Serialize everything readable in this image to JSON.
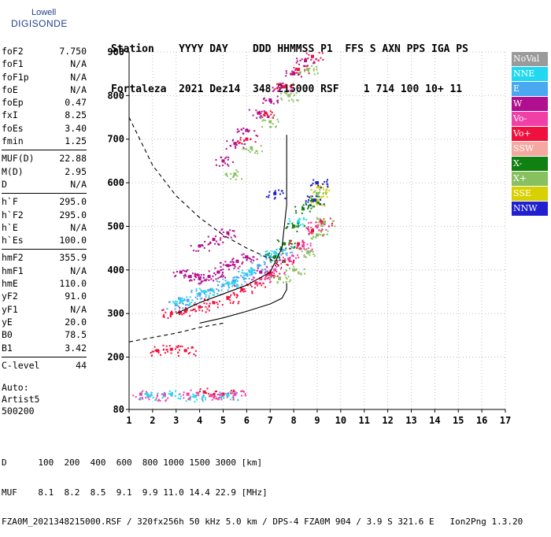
{
  "logo": {
    "line1": "Lowell",
    "line2": "DIGISONDE"
  },
  "header": {
    "labels": "Station    YYYY DAY    DDD HHMMSS P1  FFS S AXN PPS IGA PS",
    "values": "Fortaleza  2021 Dez14  348 215000 RSF    1 714 100 10+ 11"
  },
  "params": [
    {
      "k": "foF2",
      "v": "7.750"
    },
    {
      "k": "foF1",
      "v": "N/A"
    },
    {
      "k": "foF1p",
      "v": "N/A"
    },
    {
      "k": "foE",
      "v": "N/A"
    },
    {
      "k": "foEp",
      "v": "0.47"
    },
    {
      "k": "fxI",
      "v": "8.25"
    },
    {
      "k": "foEs",
      "v": "3.40"
    },
    {
      "k": "fmin",
      "v": "1.25"
    },
    {
      "k": "MUF(D)",
      "v": "22.88"
    },
    {
      "k": "M(D)",
      "v": "2.95"
    },
    {
      "k": "D",
      "v": "N/A"
    },
    {
      "k": "h`F",
      "v": "295.0"
    },
    {
      "k": "h`F2",
      "v": "295.0"
    },
    {
      "k": "h`E",
      "v": "N/A"
    },
    {
      "k": "h`Es",
      "v": "100.0"
    },
    {
      "k": "hmF2",
      "v": "355.9"
    },
    {
      "k": "hmF1",
      "v": "N/A"
    },
    {
      "k": "hmE",
      "v": "110.0"
    },
    {
      "k": "yF2",
      "v": "91.0"
    },
    {
      "k": "yF1",
      "v": "N/A"
    },
    {
      "k": "yE",
      "v": "20.0"
    },
    {
      "k": "B0",
      "v": "78.5"
    },
    {
      "k": "B1",
      "v": "3.42"
    },
    {
      "k": "C-level",
      "v": "44"
    }
  ],
  "auto": {
    "line1": "Auto:",
    "line2": "Artist5",
    "line3": "500200"
  },
  "legend": [
    {
      "label": "NoVal",
      "color": "#9a9a9a"
    },
    {
      "label": "NNE",
      "color": "#22d8f0"
    },
    {
      "label": "E",
      "color": "#4aa8f0"
    },
    {
      "label": "W",
      "color": "#b0108f"
    },
    {
      "label": "Vo-",
      "color": "#f040a8"
    },
    {
      "label": "Vo+",
      "color": "#f01040"
    },
    {
      "label": "SSW",
      "color": "#f4a8a0"
    },
    {
      "label": "X-",
      "color": "#108010"
    },
    {
      "label": "X+",
      "color": "#88c060"
    },
    {
      "label": "SSE",
      "color": "#d8d000"
    },
    {
      "label": "NNW",
      "color": "#2020d0"
    }
  ],
  "footer": {
    "d_row": "D      100  200  400  600  800 1000 1500 3000 [km]",
    "muf_row": "MUF    8.1  8.2  8.5  9.1  9.9 11.0 14.4 22.9 [MHz]",
    "file_row": "FZA0M_2021348215000.RSF / 320fx256h 50 kHz 5.0 km / DPS-4 FZA0M 904 / 3.9 S 321.6 E   Ion2Png 1.3.20"
  },
  "chart_data": {
    "type": "scatter",
    "title": "",
    "xlabel": "",
    "ylabel": "",
    "xlim": [
      1,
      17
    ],
    "ylim": [
      80,
      900
    ],
    "xticks": [
      1,
      2,
      3,
      4,
      5,
      6,
      7,
      8,
      9,
      10,
      11,
      12,
      13,
      14,
      15,
      16,
      17
    ],
    "yticks": [
      80,
      200,
      300,
      400,
      500,
      600,
      700,
      800,
      900
    ],
    "grid": true,
    "legend_placement": "right",
    "series": [
      {
        "mode": "W",
        "points": [
          [
            3.2,
            395
          ],
          [
            3.6,
            385
          ],
          [
            4.0,
            380
          ],
          [
            4.4,
            385
          ],
          [
            4.8,
            395
          ],
          [
            5.2,
            410
          ],
          [
            5.6,
            420
          ],
          [
            4.0,
            455
          ],
          [
            4.6,
            470
          ],
          [
            5.2,
            485
          ],
          [
            6.0,
            430
          ],
          [
            6.6,
            395
          ]
        ]
      },
      {
        "mode": "E",
        "points": [
          [
            3.0,
            320
          ],
          [
            3.5,
            330
          ],
          [
            4.0,
            345
          ],
          [
            4.5,
            355
          ],
          [
            5.0,
            365
          ],
          [
            5.5,
            375
          ],
          [
            6.0,
            390
          ],
          [
            6.5,
            410
          ],
          [
            7.0,
            430
          ],
          [
            7.5,
            445
          ]
        ]
      },
      {
        "mode": "NNE",
        "points": [
          [
            3.2,
            330
          ],
          [
            4.2,
            350
          ],
          [
            5.2,
            370
          ],
          [
            6.2,
            395
          ],
          [
            7.2,
            440
          ],
          [
            8.2,
            510
          ]
        ]
      },
      {
        "mode": "Vo+",
        "points": [
          [
            2.8,
            300
          ],
          [
            3.4,
            305
          ],
          [
            4.0,
            315
          ],
          [
            4.6,
            325
          ],
          [
            5.2,
            335
          ],
          [
            5.8,
            355
          ],
          [
            6.4,
            370
          ],
          [
            7.0,
            390
          ],
          [
            7.6,
            420
          ],
          [
            8.2,
            460
          ],
          [
            8.8,
            490
          ],
          [
            9.2,
            510
          ]
        ]
      },
      {
        "mode": "Vo-",
        "points": [
          [
            6.6,
            380
          ],
          [
            7.2,
            400
          ],
          [
            7.8,
            425
          ],
          [
            8.4,
            455
          ],
          [
            9.0,
            500
          ]
        ]
      },
      {
        "mode": "X-",
        "points": [
          [
            7.2,
            430
          ],
          [
            7.6,
            460
          ],
          [
            8.0,
            500
          ],
          [
            8.4,
            540
          ],
          [
            8.8,
            560
          ]
        ]
      },
      {
        "mode": "X+",
        "points": [
          [
            7.4,
            380
          ],
          [
            8.0,
            400
          ],
          [
            8.6,
            440
          ],
          [
            9.0,
            480
          ],
          [
            9.3,
            510
          ],
          [
            9.0,
            575
          ]
        ]
      },
      {
        "mode": "SSE",
        "points": [
          [
            9.0,
            560
          ],
          [
            9.1,
            590
          ]
        ]
      },
      {
        "mode": "NNW",
        "points": [
          [
            7.2,
            575
          ],
          [
            8.9,
            560
          ],
          [
            9.0,
            600
          ]
        ]
      },
      {
        "mode": "W",
        "points": [
          [
            5.0,
            650
          ],
          [
            5.5,
            690
          ],
          [
            6.0,
            720
          ],
          [
            6.5,
            760
          ],
          [
            7.0,
            790
          ],
          [
            7.5,
            820
          ],
          [
            8.0,
            850
          ],
          [
            8.5,
            880
          ]
        ]
      },
      {
        "mode": "Vo+",
        "points": [
          [
            6.0,
            700
          ],
          [
            6.8,
            760
          ],
          [
            7.6,
            820
          ],
          [
            8.2,
            860
          ],
          [
            8.8,
            890
          ]
        ]
      },
      {
        "mode": "X+",
        "points": [
          [
            5.5,
            620
          ],
          [
            6.2,
            680
          ],
          [
            7.0,
            740
          ],
          [
            7.8,
            800
          ],
          [
            8.6,
            860
          ]
        ]
      },
      {
        "mode": "Vo+",
        "points": [
          [
            2.2,
            215
          ],
          [
            2.8,
            218
          ],
          [
            3.4,
            215
          ],
          [
            4.2,
            120
          ],
          [
            5.0,
            115
          ]
        ]
      },
      {
        "mode": "Vo-",
        "points": [
          [
            1.5,
            115
          ],
          [
            2.5,
            112
          ],
          [
            3.5,
            115
          ],
          [
            4.5,
            112
          ],
          [
            5.5,
            115
          ]
        ]
      },
      {
        "mode": "NNE",
        "points": [
          [
            1.8,
            112
          ],
          [
            2.8,
            115
          ],
          [
            3.8,
            110
          ],
          [
            5.2,
            113
          ]
        ]
      }
    ],
    "profile_curve": [
      [
        4.0,
        278
      ],
      [
        5.0,
        290
      ],
      [
        6.0,
        305
      ],
      [
        7.0,
        322
      ],
      [
        7.5,
        335
      ],
      [
        7.7,
        355
      ],
      [
        7.7,
        370
      ]
    ],
    "trace_curve": [
      [
        3.0,
        300
      ],
      [
        4.0,
        325
      ],
      [
        5.0,
        345
      ],
      [
        6.0,
        365
      ],
      [
        7.0,
        395
      ],
      [
        7.5,
        450
      ],
      [
        7.7,
        550
      ],
      [
        7.7,
        710
      ]
    ],
    "dashed_curve_upper": [
      [
        1.0,
        750
      ],
      [
        2.0,
        640
      ],
      [
        3.0,
        570
      ],
      [
        4.0,
        520
      ],
      [
        5.0,
        480
      ],
      [
        6.0,
        450
      ],
      [
        7.0,
        425
      ],
      [
        7.5,
        405
      ]
    ],
    "dashed_curve_lower": [
      [
        1.0,
        235
      ],
      [
        2.0,
        245
      ],
      [
        3.0,
        255
      ],
      [
        4.0,
        268
      ],
      [
        5.0,
        278
      ]
    ]
  }
}
